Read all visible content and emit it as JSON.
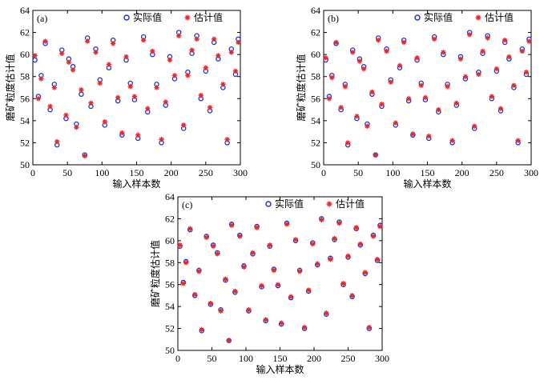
{
  "chart_data": [
    {
      "type": "scatter",
      "panel": "(a)",
      "xlabel": "输入样本数",
      "ylabel": "磨矿粒度估计值",
      "xlim": [
        0,
        300
      ],
      "ylim": [
        50,
        64
      ],
      "xticks": [
        "0",
        "50",
        "100",
        "150",
        "200",
        "250",
        "300"
      ],
      "yticks": [
        "50",
        "52",
        "54",
        "56",
        "58",
        "60",
        "62",
        "64"
      ],
      "legend": [
        "实际值",
        "估计值"
      ],
      "legend_position": "top-right",
      "x": [
        3,
        8,
        12,
        18,
        25,
        31,
        35,
        42,
        48,
        52,
        58,
        63,
        70,
        75,
        79,
        84,
        91,
        97,
        104,
        110,
        116,
        123,
        129,
        135,
        141,
        147,
        152,
        160,
        166,
        173,
        179,
        186,
        192,
        198,
        205,
        211,
        218,
        224,
        230,
        237,
        243,
        250,
        256,
        262,
        268,
        275,
        281,
        287,
        293,
        297
      ],
      "actual": [
        59.5,
        56.2,
        58.1,
        61.0,
        55.0,
        57.3,
        51.8,
        60.4,
        54.2,
        59.6,
        58.9,
        53.7,
        56.4,
        50.9,
        61.5,
        55.3,
        60.5,
        57.7,
        53.6,
        58.8,
        61.3,
        55.8,
        52.7,
        59.5,
        57.4,
        55.9,
        52.4,
        61.6,
        54.8,
        60.0,
        57.3,
        52.0,
        55.4,
        59.8,
        57.8,
        62.0,
        53.3,
        58.4,
        60.1,
        61.7,
        56.0,
        58.5,
        54.9,
        61.1,
        59.6,
        57.0,
        52.0,
        60.5,
        58.2,
        61.4
      ],
      "estimated": [
        59.9,
        56.0,
        57.8,
        61.2,
        55.3,
        57.0,
        52.1,
        60.1,
        54.5,
        59.3,
        58.6,
        53.4,
        56.8,
        50.8,
        61.2,
        55.6,
        60.2,
        57.4,
        53.9,
        59.1,
        61.0,
        56.1,
        52.9,
        59.8,
        57.1,
        56.2,
        52.7,
        61.3,
        55.1,
        60.3,
        57.0,
        52.3,
        55.7,
        59.5,
        58.1,
        61.7,
        53.6,
        58.1,
        60.4,
        61.4,
        56.3,
        58.8,
        55.2,
        61.4,
        59.9,
        57.3,
        52.3,
        60.2,
        58.5,
        61.1
      ],
      "colors": {
        "actual": "#1f2fd6",
        "estimated": "#e8282a"
      }
    },
    {
      "type": "scatter",
      "panel": "(b)",
      "xlabel": "输入样本数",
      "ylabel": "磨矿粒度估计值",
      "xlim": [
        0,
        300
      ],
      "ylim": [
        50,
        64
      ],
      "xticks": [
        "0",
        "50",
        "100",
        "150",
        "200",
        "250",
        "300"
      ],
      "yticks": [
        "50",
        "52",
        "54",
        "56",
        "58",
        "60",
        "62",
        "64"
      ],
      "legend": [
        "实际值",
        "估计值"
      ],
      "legend_position": "top-right",
      "x": [
        3,
        8,
        12,
        18,
        25,
        31,
        35,
        42,
        48,
        52,
        58,
        63,
        70,
        75,
        79,
        84,
        91,
        97,
        104,
        110,
        116,
        123,
        129,
        135,
        141,
        147,
        152,
        160,
        166,
        173,
        179,
        186,
        192,
        198,
        205,
        211,
        218,
        224,
        230,
        237,
        243,
        250,
        256,
        262,
        268,
        275,
        281,
        287,
        293,
        297
      ],
      "actual": [
        59.5,
        56.2,
        58.1,
        61.0,
        55.0,
        57.3,
        51.8,
        60.4,
        54.2,
        59.6,
        58.9,
        53.7,
        56.4,
        50.9,
        61.5,
        55.3,
        60.5,
        57.7,
        53.6,
        58.8,
        61.3,
        55.8,
        52.7,
        59.5,
        57.4,
        55.9,
        52.4,
        61.6,
        54.8,
        60.0,
        57.3,
        52.0,
        55.4,
        59.8,
        57.8,
        62.0,
        53.3,
        58.4,
        60.1,
        61.7,
        56.0,
        58.5,
        54.9,
        61.1,
        59.6,
        57.0,
        52.0,
        60.5,
        58.2,
        61.4
      ],
      "estimated": [
        59.7,
        56.0,
        57.9,
        61.1,
        55.2,
        57.1,
        52.0,
        60.2,
        54.4,
        59.4,
        58.7,
        53.5,
        56.6,
        50.9,
        61.3,
        55.5,
        60.3,
        57.5,
        53.8,
        59.0,
        61.1,
        56.0,
        52.8,
        59.7,
        57.2,
        56.1,
        52.6,
        61.4,
        55.0,
        60.2,
        57.1,
        52.2,
        55.6,
        59.6,
        58.0,
        61.8,
        53.5,
        58.2,
        60.3,
        61.5,
        56.2,
        58.7,
        55.1,
        61.3,
        59.8,
        57.2,
        52.2,
        60.3,
        58.4,
        61.2
      ],
      "colors": {
        "actual": "#1f2fd6",
        "estimated": "#e8282a"
      }
    },
    {
      "type": "scatter",
      "panel": "(c)",
      "xlabel": "输入样本数",
      "ylabel": "磨矿粒度估计值",
      "xlim": [
        0,
        300
      ],
      "ylim": [
        50,
        64
      ],
      "xticks": [
        "0",
        "50",
        "100",
        "150",
        "200",
        "250",
        "300"
      ],
      "yticks": [
        "50",
        "52",
        "54",
        "56",
        "58",
        "60",
        "62",
        "64"
      ],
      "legend": [
        "实际值",
        "估计值"
      ],
      "legend_position": "top-right",
      "x": [
        3,
        8,
        12,
        18,
        25,
        31,
        35,
        42,
        48,
        52,
        58,
        63,
        70,
        75,
        79,
        84,
        91,
        97,
        104,
        110,
        116,
        123,
        129,
        135,
        141,
        147,
        152,
        160,
        166,
        173,
        179,
        186,
        192,
        198,
        205,
        211,
        218,
        224,
        230,
        237,
        243,
        250,
        256,
        262,
        268,
        275,
        281,
        287,
        293,
        297
      ],
      "actual": [
        59.5,
        56.2,
        58.1,
        61.0,
        55.0,
        57.3,
        51.8,
        60.4,
        54.2,
        59.6,
        58.9,
        53.7,
        56.4,
        50.9,
        61.5,
        55.3,
        60.5,
        57.7,
        53.6,
        58.8,
        61.3,
        55.8,
        52.7,
        59.5,
        57.4,
        55.9,
        52.4,
        61.6,
        54.8,
        60.0,
        57.3,
        52.0,
        55.4,
        59.8,
        57.8,
        62.0,
        53.3,
        58.4,
        60.1,
        61.7,
        56.0,
        58.5,
        54.9,
        61.1,
        59.6,
        57.0,
        52.0,
        60.5,
        58.2,
        61.4
      ],
      "estimated": [
        59.6,
        56.1,
        58.0,
        61.1,
        55.1,
        57.2,
        51.9,
        60.3,
        54.3,
        59.5,
        58.8,
        53.6,
        56.5,
        50.9,
        61.4,
        55.4,
        60.4,
        57.6,
        53.7,
        58.9,
        61.2,
        55.9,
        52.8,
        59.6,
        57.3,
        56.0,
        52.5,
        61.5,
        54.9,
        60.1,
        57.2,
        52.1,
        55.5,
        59.7,
        57.9,
        61.9,
        53.4,
        58.3,
        60.2,
        61.6,
        56.1,
        58.6,
        55.0,
        61.2,
        59.7,
        57.1,
        52.1,
        60.4,
        58.3,
        61.3
      ],
      "colors": {
        "actual": "#1f2fd6",
        "estimated": "#e8282a"
      }
    }
  ]
}
